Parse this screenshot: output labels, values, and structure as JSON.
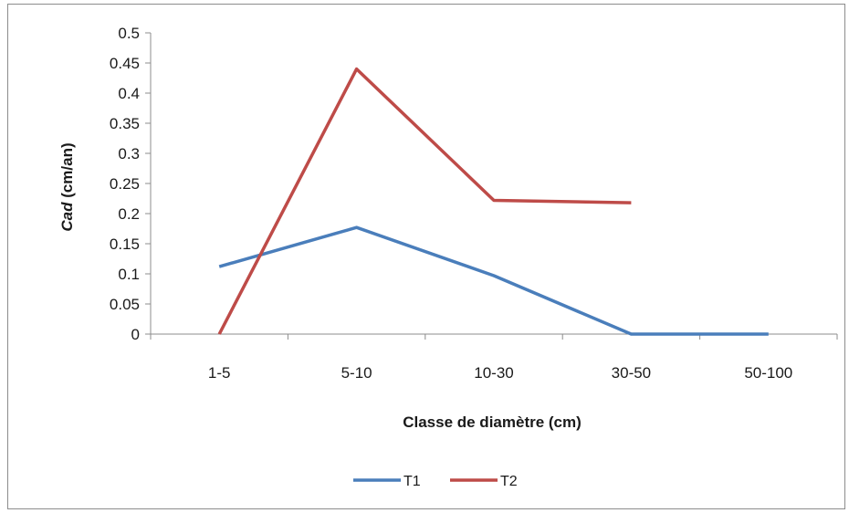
{
  "chart_data": {
    "type": "line",
    "categories": [
      "1-5",
      "5-10",
      "10-30",
      "30-50",
      "50-100"
    ],
    "series": [
      {
        "name": "T1",
        "color": "#4a7ebb",
        "values": [
          0.112,
          0.177,
          0.097,
          0.0,
          0.0
        ]
      },
      {
        "name": "T2",
        "color": "#be4b48",
        "values": [
          0.0,
          0.44,
          0.222,
          0.218,
          null
        ]
      }
    ],
    "ylim": [
      0,
      0.5
    ],
    "yticks": [
      "0",
      "0.05",
      "0.1",
      "0.15",
      "0.2",
      "0.25",
      "0.3",
      "0.35",
      "0.4",
      "0.45",
      "0.5"
    ],
    "ylabel_italic": "Cad",
    "ylabel_rest": " (cm/an)",
    "xlabel": "Classe de diamètre (cm)",
    "grid": false,
    "legend": "bottom"
  }
}
